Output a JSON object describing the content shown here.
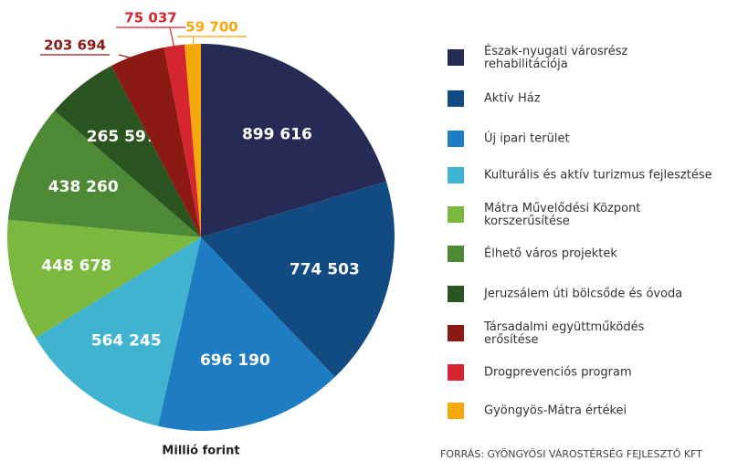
{
  "chart_data": {
    "type": "pie",
    "categories": [
      "Észak-nyugati városrész\nrehabilitációja",
      "Aktív Ház",
      "Új ipari terület",
      "Kulturális és aktív turizmus fejlesztése",
      "Mátra Művelődési Központ\nkorszerűsítése",
      "Élhető város projektek",
      "Jeruzsálem úti bölcsőde és óvoda",
      "Társadalmi együttműködés\nerősítése",
      "Drogprevenciós program",
      "Gyöngyös-Mátra értékei"
    ],
    "values": [
      899616,
      774503,
      696190,
      564245,
      448678,
      438260,
      265597,
      203694,
      75037,
      59700
    ],
    "value_labels": [
      "899 616",
      "774 503",
      "696 190",
      "564 245",
      "448 678",
      "438 260",
      "265 597",
      "203 694",
      "75 037",
      "59 700"
    ],
    "colors": [
      "#262b55",
      "#124a82",
      "#1e7cc2",
      "#3fb3cf",
      "#7ab83f",
      "#4e8a35",
      "#2b5520",
      "#8b1a14",
      "#d42531",
      "#f5a80a"
    ],
    "caption": "Millió forint",
    "source": "FORRÁS: GYÖNGYÖSI VÁROSTÉRSÉG FEJLESZTŐ KFT"
  }
}
